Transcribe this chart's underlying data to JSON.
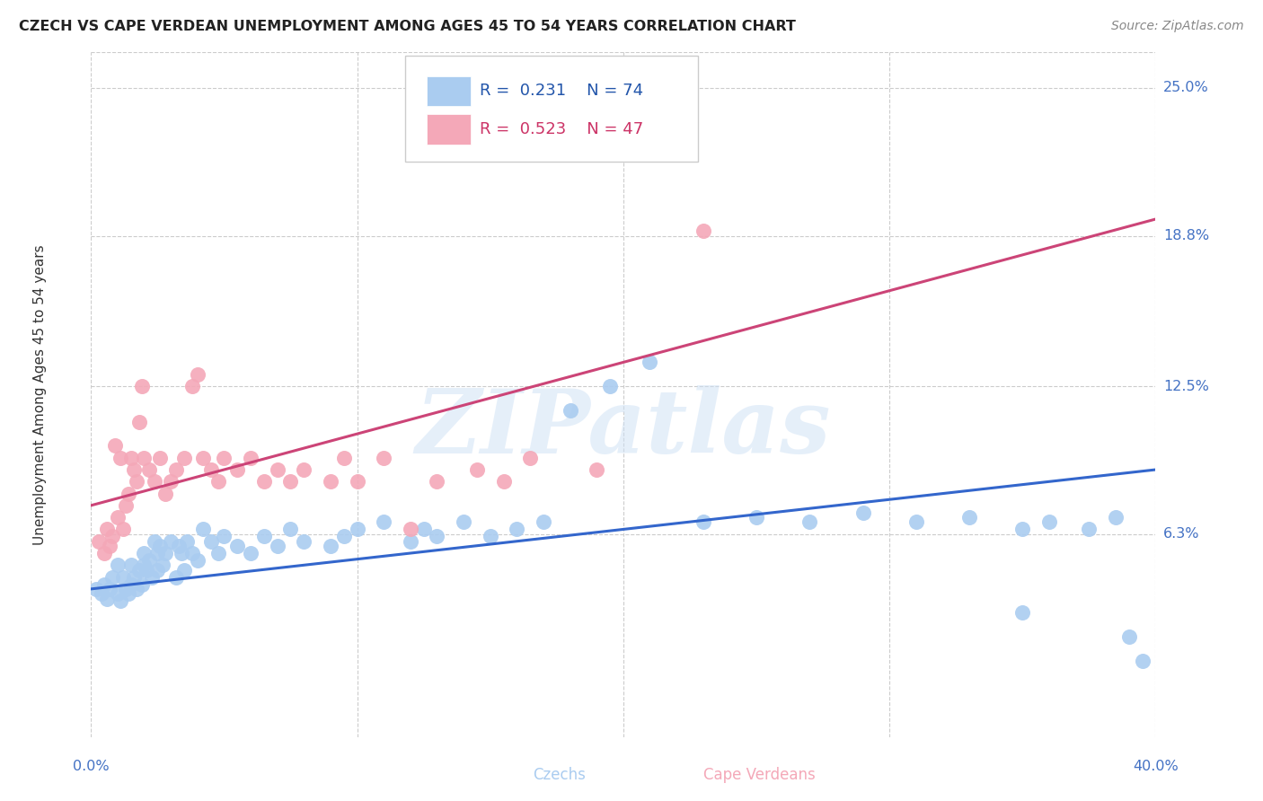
{
  "title": "CZECH VS CAPE VERDEAN UNEMPLOYMENT AMONG AGES 45 TO 54 YEARS CORRELATION CHART",
  "source": "Source: ZipAtlas.com",
  "ylabel": "Unemployment Among Ages 45 to 54 years",
  "xlim": [
    0.0,
    0.4
  ],
  "ylim": [
    -0.022,
    0.265
  ],
  "ytick_values": [
    0.063,
    0.125,
    0.188,
    0.25
  ],
  "ytick_labels": [
    "6.3%",
    "12.5%",
    "18.8%",
    "25.0%"
  ],
  "xtick_values": [
    0.0,
    0.1,
    0.2,
    0.3,
    0.4
  ],
  "background_color": "#ffffff",
  "grid_color": "#cccccc",
  "czech_color": "#aaccf0",
  "cape_verdean_color": "#f4a8b8",
  "trend_czech_color": "#3366cc",
  "trend_cape_verdean_color": "#cc4477",
  "legend_czech_R": "0.231",
  "legend_czech_N": "74",
  "legend_cape_verdean_R": "0.523",
  "legend_cape_verdean_N": "47",
  "watermark_text": "ZIPatlas",
  "czech_trend_x0": 0.0,
  "czech_trend_y0": 0.04,
  "czech_trend_x1": 0.4,
  "czech_trend_y1": 0.09,
  "cv_trend_x0": 0.0,
  "cv_trend_y0": 0.075,
  "cv_trend_x1": 0.4,
  "cv_trend_y1": 0.195,
  "czech_x": [
    0.002,
    0.004,
    0.005,
    0.006,
    0.007,
    0.008,
    0.01,
    0.01,
    0.011,
    0.012,
    0.013,
    0.014,
    0.015,
    0.015,
    0.016,
    0.017,
    0.018,
    0.019,
    0.02,
    0.02,
    0.021,
    0.022,
    0.023,
    0.024,
    0.025,
    0.025,
    0.026,
    0.027,
    0.028,
    0.03,
    0.032,
    0.033,
    0.034,
    0.035,
    0.036,
    0.038,
    0.04,
    0.042,
    0.045,
    0.048,
    0.05,
    0.055,
    0.06,
    0.065,
    0.07,
    0.075,
    0.08,
    0.09,
    0.095,
    0.1,
    0.11,
    0.12,
    0.125,
    0.13,
    0.14,
    0.15,
    0.16,
    0.17,
    0.18,
    0.195,
    0.21,
    0.23,
    0.25,
    0.27,
    0.29,
    0.31,
    0.33,
    0.35,
    0.36,
    0.375,
    0.385,
    0.39,
    0.35,
    0.395
  ],
  "czech_y": [
    0.04,
    0.038,
    0.042,
    0.036,
    0.04,
    0.045,
    0.038,
    0.05,
    0.035,
    0.045,
    0.04,
    0.038,
    0.042,
    0.05,
    0.045,
    0.04,
    0.048,
    0.042,
    0.05,
    0.055,
    0.048,
    0.052,
    0.045,
    0.06,
    0.055,
    0.048,
    0.058,
    0.05,
    0.055,
    0.06,
    0.045,
    0.058,
    0.055,
    0.048,
    0.06,
    0.055,
    0.052,
    0.065,
    0.06,
    0.055,
    0.062,
    0.058,
    0.055,
    0.062,
    0.058,
    0.065,
    0.06,
    0.058,
    0.062,
    0.065,
    0.068,
    0.06,
    0.065,
    0.062,
    0.068,
    0.062,
    0.065,
    0.068,
    0.115,
    0.125,
    0.135,
    0.068,
    0.07,
    0.068,
    0.072,
    0.068,
    0.07,
    0.065,
    0.068,
    0.065,
    0.07,
    0.02,
    0.03,
    0.01
  ],
  "cape_verdean_x": [
    0.003,
    0.005,
    0.006,
    0.007,
    0.008,
    0.009,
    0.01,
    0.011,
    0.012,
    0.013,
    0.014,
    0.015,
    0.016,
    0.017,
    0.018,
    0.019,
    0.02,
    0.022,
    0.024,
    0.026,
    0.028,
    0.03,
    0.032,
    0.035,
    0.038,
    0.04,
    0.042,
    0.045,
    0.048,
    0.05,
    0.055,
    0.06,
    0.065,
    0.07,
    0.075,
    0.08,
    0.09,
    0.095,
    0.1,
    0.11,
    0.12,
    0.13,
    0.145,
    0.155,
    0.165,
    0.19,
    0.23
  ],
  "cape_verdean_y": [
    0.06,
    0.055,
    0.065,
    0.058,
    0.062,
    0.1,
    0.07,
    0.095,
    0.065,
    0.075,
    0.08,
    0.095,
    0.09,
    0.085,
    0.11,
    0.125,
    0.095,
    0.09,
    0.085,
    0.095,
    0.08,
    0.085,
    0.09,
    0.095,
    0.125,
    0.13,
    0.095,
    0.09,
    0.085,
    0.095,
    0.09,
    0.095,
    0.085,
    0.09,
    0.085,
    0.09,
    0.085,
    0.095,
    0.085,
    0.095,
    0.065,
    0.085,
    0.09,
    0.085,
    0.095,
    0.09,
    0.19
  ]
}
